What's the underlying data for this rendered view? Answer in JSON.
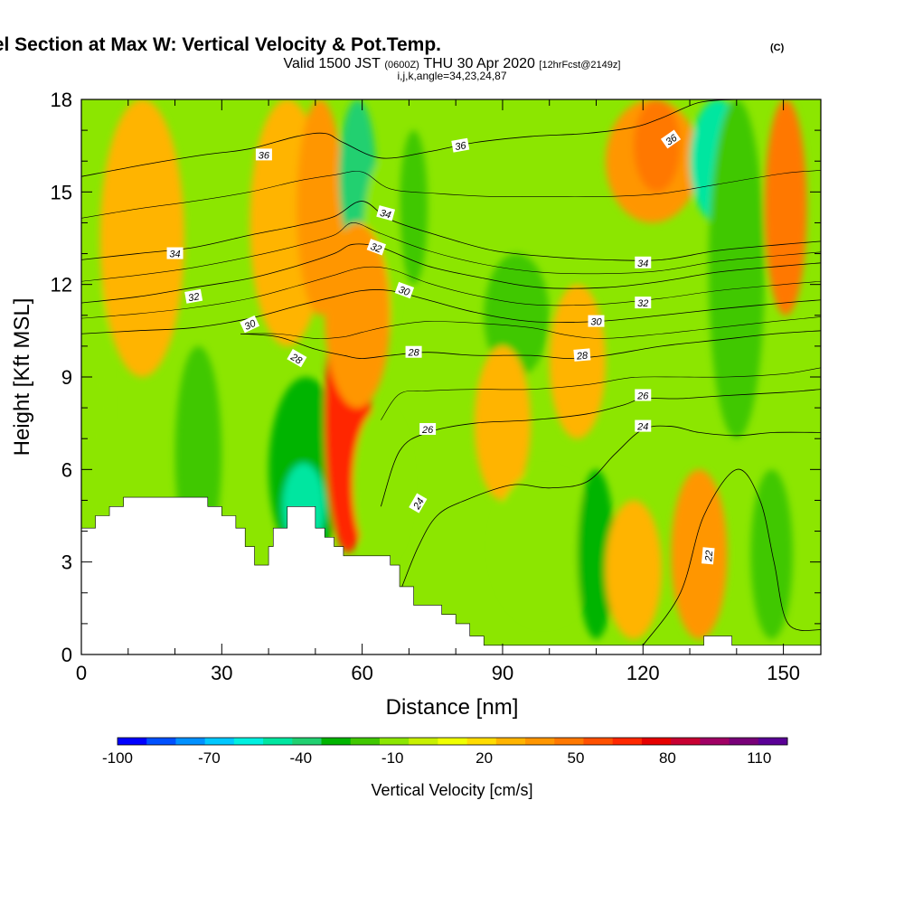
{
  "chart_data": {
    "type": "heatmap",
    "title": "Wind-Parallel Section at Max W: Vertical Velocity & Pot.Temp.",
    "title_mark": "(C)",
    "subtitle_parts": [
      "Valid 1500 JST",
      "(0600Z)",
      "THU 30 Apr 2020",
      "[12hrFcst@2149z]"
    ],
    "subtitle2": "i,j,k,angle=34,23,24,87",
    "xlabel": "Distance [nm]",
    "ylabel": "Height [Kft MSL]",
    "xlim": [
      0,
      158
    ],
    "ylim": [
      0,
      18
    ],
    "xticks": [
      "0",
      "30",
      "60",
      "90",
      "120",
      "150"
    ],
    "yticks": [
      "0",
      "3",
      "6",
      "9",
      "12",
      "15",
      "18"
    ],
    "colorbar": {
      "label": "Vertical Velocity [cm/s]",
      "tick_labels": [
        "-100",
        "-70",
        "-40",
        "-10",
        "20",
        "50",
        "80",
        "110"
      ],
      "colors": [
        "#0000ff",
        "#0050ff",
        "#0090ff",
        "#00c8ff",
        "#00f0e0",
        "#00e6a0",
        "#20d070",
        "#00b400",
        "#40c800",
        "#8ce600",
        "#c8f000",
        "#f0ff00",
        "#ffdc00",
        "#ffb400",
        "#ff9600",
        "#ff7800",
        "#ff5000",
        "#ff2800",
        "#e60000",
        "#c80032",
        "#a00064",
        "#780078",
        "#5a0096"
      ]
    },
    "terrain_kft": [
      [
        0,
        4.1
      ],
      [
        3,
        4.1
      ],
      [
        3,
        4.5
      ],
      [
        6,
        4.5
      ],
      [
        6,
        4.8
      ],
      [
        9,
        4.8
      ],
      [
        9,
        5.1
      ],
      [
        27,
        5.1
      ],
      [
        27,
        4.8
      ],
      [
        30,
        4.8
      ],
      [
        30,
        4.5
      ],
      [
        33,
        4.5
      ],
      [
        33,
        4.1
      ],
      [
        35,
        4.1
      ],
      [
        35,
        3.5
      ],
      [
        37,
        3.5
      ],
      [
        37,
        2.9
      ],
      [
        40,
        2.9
      ],
      [
        40,
        3.5
      ],
      [
        41,
        3.5
      ],
      [
        41,
        4.1
      ],
      [
        44,
        4.1
      ],
      [
        44,
        4.8
      ],
      [
        50,
        4.8
      ],
      [
        50,
        4.1
      ],
      [
        52,
        4.1
      ],
      [
        52,
        3.8
      ],
      [
        54,
        3.8
      ],
      [
        54,
        3.5
      ],
      [
        56,
        3.5
      ],
      [
        56,
        3.2
      ],
      [
        66,
        3.2
      ],
      [
        66,
        2.9
      ],
      [
        68,
        2.9
      ],
      [
        68,
        2.2
      ],
      [
        71,
        2.2
      ],
      [
        71,
        1.6
      ],
      [
        77,
        1.6
      ],
      [
        77,
        1.3
      ],
      [
        80,
        1.3
      ],
      [
        80,
        1.0
      ],
      [
        83,
        1.0
      ],
      [
        83,
        0.6
      ],
      [
        86,
        0.6
      ],
      [
        86,
        0.3
      ],
      [
        133,
        0.3
      ],
      [
        133,
        0.6
      ],
      [
        139,
        0.6
      ],
      [
        139,
        0.3
      ],
      [
        158,
        0.3
      ]
    ],
    "field_blobs": [
      {
        "v": 25,
        "x": [
          4,
          22
        ],
        "y": [
          9,
          18
        ]
      },
      {
        "v": 25,
        "x": [
          36,
          52
        ],
        "y": [
          10,
          18
        ]
      },
      {
        "v": 30,
        "x": [
          46,
          56
        ],
        "y": [
          11,
          18
        ]
      },
      {
        "v": -45,
        "x": [
          55,
          63
        ],
        "y": [
          13,
          18
        ]
      },
      {
        "v": -20,
        "x": [
          60,
          68
        ],
        "y": [
          10,
          16
        ]
      },
      {
        "v": -25,
        "x": [
          68,
          74
        ],
        "y": [
          12,
          17
        ]
      },
      {
        "v": 30,
        "x": [
          112,
          132
        ],
        "y": [
          14,
          18
        ]
      },
      {
        "v": 45,
        "x": [
          118,
          128
        ],
        "y": [
          15,
          18
        ]
      },
      {
        "v": -55,
        "x": [
          130,
          142
        ],
        "y": [
          14,
          18
        ]
      },
      {
        "v": -25,
        "x": [
          134,
          146
        ],
        "y": [
          7,
          18
        ]
      },
      {
        "v": 40,
        "x": [
          146,
          155
        ],
        "y": [
          11,
          18
        ]
      },
      {
        "v": -20,
        "x": [
          2,
          6
        ],
        "y": [
          0,
          12
        ]
      },
      {
        "v": -25,
        "x": [
          20,
          30
        ],
        "y": [
          3,
          10
        ]
      },
      {
        "v": -40,
        "x": [
          40,
          56
        ],
        "y": [
          3,
          9
        ]
      },
      {
        "v": -55,
        "x": [
          43,
          52
        ],
        "y": [
          3.4,
          6.2
        ]
      },
      {
        "v": 115,
        "x": [
          54,
          60
        ],
        "y": [
          4.2,
          10
        ]
      },
      {
        "v": 60,
        "x": [
          52,
          62
        ],
        "y": [
          3.3,
          12
        ]
      },
      {
        "v": 35,
        "x": [
          52,
          66
        ],
        "y": [
          8,
          14
        ]
      },
      {
        "v": -20,
        "x": [
          58,
          70
        ],
        "y": [
          3,
          8
        ]
      },
      {
        "v": -25,
        "x": [
          86,
          100
        ],
        "y": [
          9,
          13
        ]
      },
      {
        "v": 25,
        "x": [
          84,
          96
        ],
        "y": [
          5,
          10
        ]
      },
      {
        "v": -15,
        "x": [
          88,
          110
        ],
        "y": [
          1,
          6
        ]
      },
      {
        "v": 25,
        "x": [
          100,
          112
        ],
        "y": [
          7,
          12
        ]
      },
      {
        "v": -35,
        "x": [
          106,
          114
        ],
        "y": [
          0.5,
          6
        ]
      },
      {
        "v": 25,
        "x": [
          112,
          124
        ],
        "y": [
          0.5,
          5
        ]
      },
      {
        "v": 30,
        "x": [
          126,
          138
        ],
        "y": [
          0.5,
          6
        ]
      },
      {
        "v": -25,
        "x": [
          143,
          152
        ],
        "y": [
          0.5,
          6
        ]
      }
    ],
    "contours": [
      {
        "label": "22",
        "points": [
          [
            120,
            0.3
          ],
          [
            128,
            2
          ],
          [
            133,
            4.5
          ],
          [
            140,
            6
          ],
          [
            145,
            5
          ],
          [
            148,
            3
          ],
          [
            151,
            1
          ],
          [
            158,
            0.8
          ]
        ]
      },
      {
        "label": "24",
        "points": [
          [
            68,
            2
          ],
          [
            72,
            3.5
          ],
          [
            76,
            4.5
          ],
          [
            82,
            5
          ],
          [
            92,
            5.5
          ],
          [
            100,
            5.4
          ],
          [
            108,
            5.6
          ],
          [
            114,
            6.5
          ],
          [
            120,
            7.3
          ],
          [
            126,
            7.4
          ],
          [
            132,
            7.2
          ],
          [
            140,
            7.1
          ],
          [
            148,
            7.2
          ],
          [
            158,
            7.2
          ]
        ]
      },
      {
        "label": "26",
        "points": [
          [
            64,
            4.8
          ],
          [
            68,
            6.6
          ],
          [
            74,
            7.2
          ],
          [
            84,
            7.5
          ],
          [
            96,
            7.6
          ],
          [
            108,
            7.8
          ],
          [
            116,
            8.1
          ],
          [
            120,
            8.3
          ],
          [
            128,
            8.3
          ],
          [
            138,
            8.4
          ],
          [
            150,
            8.5
          ],
          [
            158,
            8.6
          ]
        ]
      },
      {
        "label": "28",
        "points": [
          [
            34,
            10.4
          ],
          [
            42,
            10.3
          ],
          [
            50,
            9.9
          ],
          [
            56,
            9.7
          ],
          [
            60,
            9.6
          ],
          [
            66,
            9.7
          ],
          [
            74,
            9.8
          ],
          [
            84,
            9.7
          ],
          [
            96,
            9.7
          ],
          [
            104,
            9.6
          ],
          [
            112,
            9.7
          ],
          [
            124,
            10
          ],
          [
            136,
            10.2
          ],
          [
            148,
            10.4
          ],
          [
            158,
            10.5
          ]
        ]
      },
      {
        "label": "30",
        "points": [
          [
            0,
            10.4
          ],
          [
            12,
            10.5
          ],
          [
            24,
            10.6
          ],
          [
            36,
            10.9
          ],
          [
            46,
            11.3
          ],
          [
            54,
            11.6
          ],
          [
            60,
            11.8
          ],
          [
            66,
            11.8
          ],
          [
            74,
            11.5
          ],
          [
            84,
            11.1
          ],
          [
            96,
            10.8
          ],
          [
            110,
            10.8
          ],
          [
            124,
            11
          ],
          [
            136,
            11.2
          ],
          [
            150,
            11.4
          ],
          [
            158,
            11.5
          ]
        ]
      },
      {
        "label": "32",
        "points": [
          [
            0,
            11.4
          ],
          [
            12,
            11.6
          ],
          [
            24,
            11.9
          ],
          [
            36,
            12.2
          ],
          [
            46,
            12.6
          ],
          [
            54,
            13
          ],
          [
            58,
            13.3
          ],
          [
            64,
            13.2
          ],
          [
            74,
            12.6
          ],
          [
            86,
            12.2
          ],
          [
            98,
            11.9
          ],
          [
            112,
            11.9
          ],
          [
            124,
            12.1
          ],
          [
            136,
            12.4
          ],
          [
            150,
            12.6
          ],
          [
            158,
            12.7
          ]
        ]
      },
      {
        "label": "34",
        "points": [
          [
            0,
            12.8
          ],
          [
            12,
            13
          ],
          [
            24,
            13.2
          ],
          [
            36,
            13.6
          ],
          [
            46,
            13.9
          ],
          [
            54,
            14.2
          ],
          [
            60,
            14.7
          ],
          [
            66,
            14.1
          ],
          [
            76,
            13.6
          ],
          [
            88,
            13.1
          ],
          [
            100,
            12.9
          ],
          [
            112,
            12.8
          ],
          [
            124,
            12.8
          ],
          [
            136,
            13.1
          ],
          [
            150,
            13.3
          ],
          [
            158,
            13.4
          ]
        ]
      },
      {
        "label": "36",
        "points": [
          [
            0,
            15.5
          ],
          [
            14,
            15.9
          ],
          [
            26,
            16.2
          ],
          [
            36,
            16.4
          ],
          [
            46,
            16.8
          ],
          [
            52,
            16.9
          ],
          [
            56,
            16.6
          ],
          [
            64,
            16.1
          ],
          [
            74,
            16.3
          ],
          [
            84,
            16.6
          ],
          [
            96,
            16.8
          ],
          [
            108,
            16.9
          ],
          [
            118,
            17.1
          ],
          [
            124,
            17.4
          ],
          [
            132,
            17.9
          ],
          [
            140,
            18
          ]
        ]
      }
    ],
    "contour_labels": [
      {
        "text": "36",
        "x": 39,
        "y": 16.2,
        "rot": 0
      },
      {
        "text": "36",
        "x": 81,
        "y": 16.5,
        "rot": -10
      },
      {
        "text": "36",
        "x": 126,
        "y": 16.7,
        "rot": -35
      },
      {
        "text": "34",
        "x": 20,
        "y": 13,
        "rot": 0
      },
      {
        "text": "34",
        "x": 65,
        "y": 14.3,
        "rot": 15
      },
      {
        "text": "34",
        "x": 120,
        "y": 12.7,
        "rot": 0
      },
      {
        "text": "32",
        "x": 24,
        "y": 11.6,
        "rot": -10
      },
      {
        "text": "32",
        "x": 63,
        "y": 13.2,
        "rot": 20
      },
      {
        "text": "32",
        "x": 120,
        "y": 11.4,
        "rot": 0
      },
      {
        "text": "30",
        "x": 36,
        "y": 10.7,
        "rot": -25
      },
      {
        "text": "30",
        "x": 69,
        "y": 11.8,
        "rot": 20
      },
      {
        "text": "30",
        "x": 110,
        "y": 10.8,
        "rot": 0
      },
      {
        "text": "28",
        "x": 46,
        "y": 9.6,
        "rot": 30
      },
      {
        "text": "28",
        "x": 71,
        "y": 9.8,
        "rot": 0
      },
      {
        "text": "28",
        "x": 107,
        "y": 9.7,
        "rot": -5
      },
      {
        "text": "26",
        "x": 120,
        "y": 8.4,
        "rot": 0
      },
      {
        "text": "26",
        "x": 74,
        "y": 7.3,
        "rot": 0
      },
      {
        "text": "24",
        "x": 120,
        "y": 7.4,
        "rot": 0
      },
      {
        "text": "24",
        "x": 72,
        "y": 4.9,
        "rot": -60
      },
      {
        "text": "22",
        "x": 134,
        "y": 3.2,
        "rot": -85
      }
    ]
  }
}
